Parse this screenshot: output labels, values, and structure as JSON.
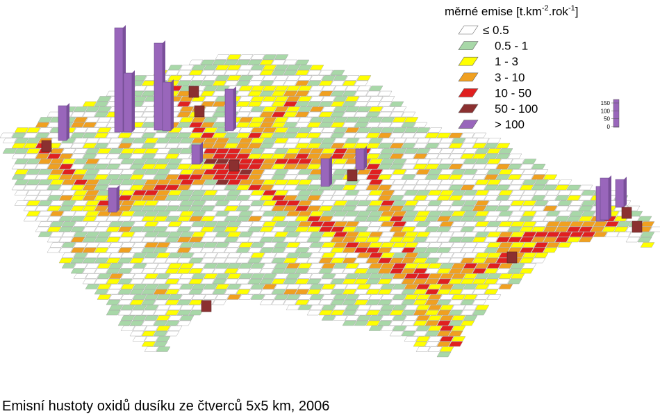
{
  "legend": {
    "title": {
      "text_1": "měrné emise [t.km",
      "sup_1": "-2",
      "text_2": ".rok",
      "sup_2": "-1",
      "text_3": "]"
    },
    "items": [
      {
        "label": "≤ 0.5",
        "color": "#ffffff"
      },
      {
        "label": "0.5 - 1",
        "color": "#a8d8a8"
      },
      {
        "label": "1 - 3",
        "color": "#ffff00"
      },
      {
        "label": "3 - 10",
        "color": "#f0a020"
      },
      {
        "label": "10 - 50",
        "color": "#e02020"
      },
      {
        "label": "50 - 100",
        "color": "#8b3030"
      },
      {
        "label": "> 100",
        "color": "#9966bb"
      }
    ]
  },
  "scale_ticks": [
    150,
    100,
    50,
    0
  ],
  "caption": "Emisní hustoty oxidů dusíku ze čtverců 5x5 km, 2006"
}
